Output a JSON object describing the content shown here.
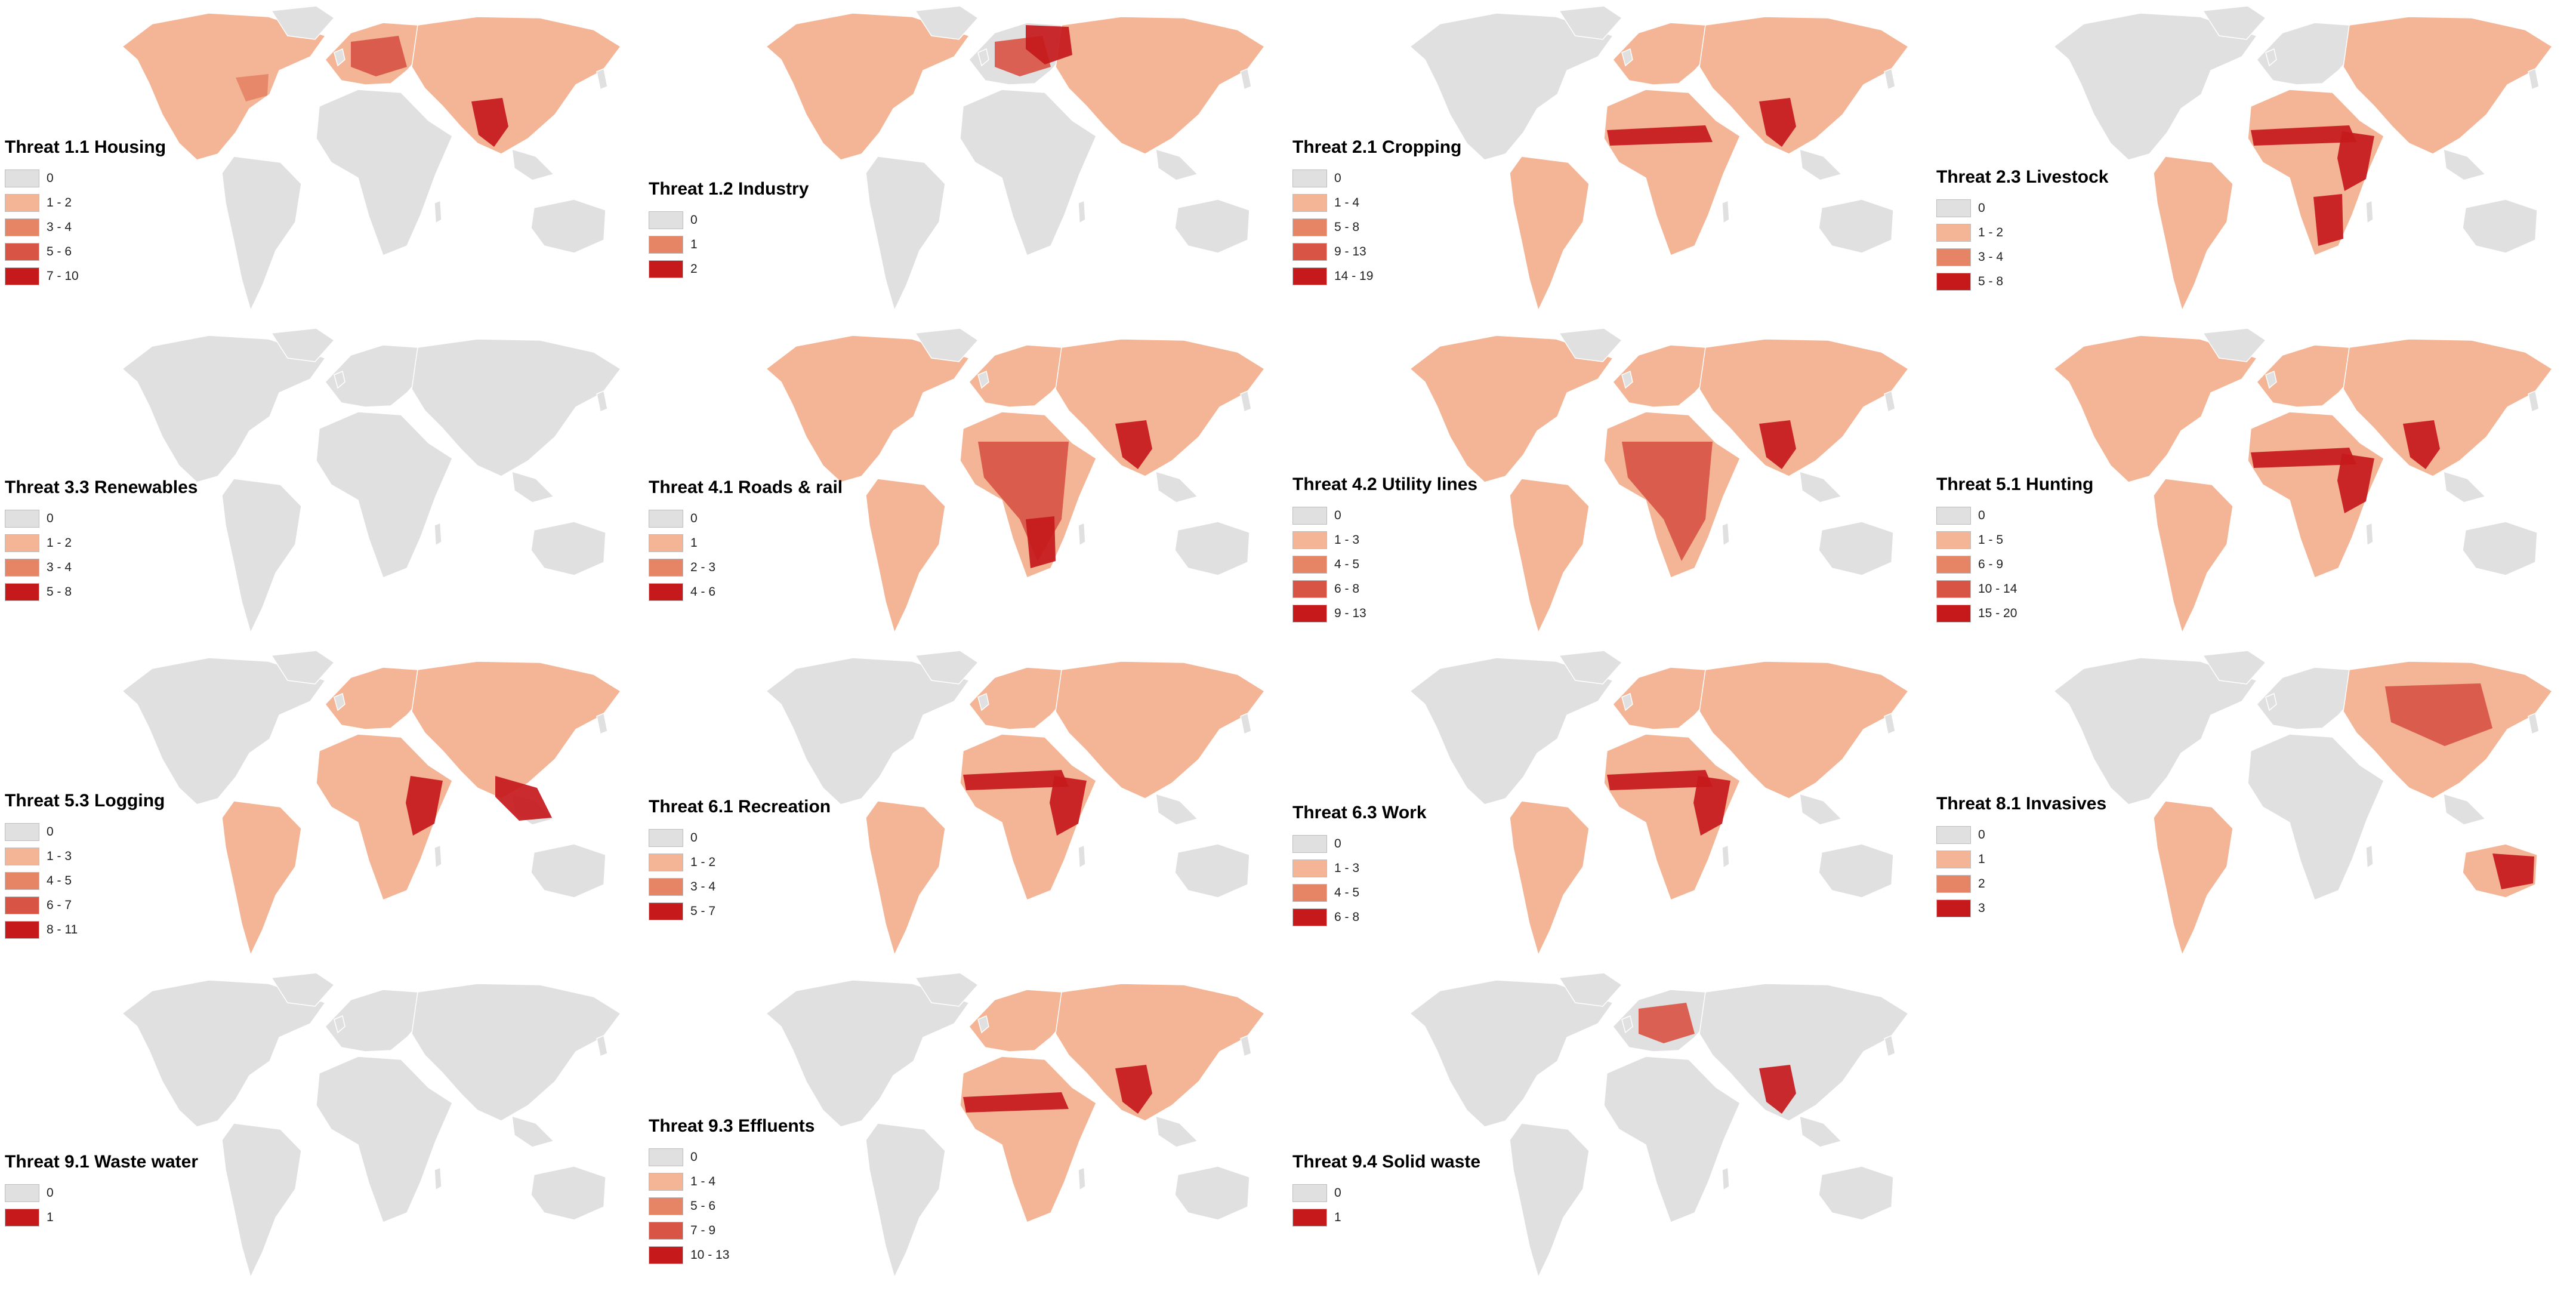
{
  "figure": {
    "colors": {
      "background": "#ffffff",
      "land": "#e0e0e0",
      "scale": [
        "#e0e0e0",
        "#f3b595",
        "#e68466",
        "#d85546",
        "#c5191c"
      ]
    },
    "panels": [
      {
        "id": "1-1",
        "title": "Threat 1.1 Housing",
        "legend": [
          "0",
          "1 - 2",
          "3 - 4",
          "5 - 6",
          "7 - 10"
        ],
        "swatch_levels": [
          0,
          1,
          2,
          3,
          4
        ],
        "hotspots": [
          "s-asia",
          "europe",
          "e-usa"
        ]
      },
      {
        "id": "1-2",
        "title": "Threat 1.2 Industry",
        "legend": [
          "0",
          "1",
          "2"
        ],
        "swatch_levels": [
          0,
          2,
          4
        ],
        "hotspots": [
          "europe",
          "e-europe"
        ]
      },
      {
        "id": "2-1",
        "title": "Threat 2.1 Cropping",
        "legend": [
          "0",
          "1 - 4",
          "5 - 8",
          "9 - 13",
          "14 - 19"
        ],
        "swatch_levels": [
          0,
          1,
          2,
          3,
          4
        ],
        "hotspots": [
          "sahel",
          "s-asia"
        ]
      },
      {
        "id": "2-3",
        "title": "Threat 2.3 Livestock",
        "legend": [
          "0",
          "1 - 2",
          "3 - 4",
          "5 - 8"
        ],
        "swatch_levels": [
          0,
          1,
          2,
          4
        ],
        "hotspots": [
          "sahel",
          "e-africa",
          "s-africa"
        ]
      },
      {
        "id": "3-3",
        "title": "Threat 3.3 Renewables",
        "legend": [
          "0",
          "1 - 2",
          "3 - 4",
          "5 - 8"
        ],
        "swatch_levels": [
          0,
          1,
          2,
          4
        ],
        "hotspots": []
      },
      {
        "id": "4-1",
        "title": "Threat 4.1 Roads & rail",
        "legend": [
          "0",
          "1",
          "2 - 3",
          "4 - 6"
        ],
        "swatch_levels": [
          0,
          1,
          2,
          4
        ],
        "hotspots": [
          "africa",
          "s-africa",
          "s-asia"
        ]
      },
      {
        "id": "4-2",
        "title": "Threat 4.2 Utility lines",
        "legend": [
          "0",
          "1 - 3",
          "4 - 5",
          "6 - 8",
          "9 - 13"
        ],
        "swatch_levels": [
          0,
          1,
          2,
          3,
          4
        ],
        "hotspots": [
          "africa",
          "s-asia"
        ]
      },
      {
        "id": "5-1",
        "title": "Threat 5.1 Hunting",
        "legend": [
          "0",
          "1 - 5",
          "6 - 9",
          "10 - 14",
          "15 - 20"
        ],
        "swatch_levels": [
          0,
          1,
          2,
          3,
          4
        ],
        "hotspots": [
          "sahel",
          "e-africa",
          "s-asia"
        ]
      },
      {
        "id": "5-3",
        "title": "Threat 5.3 Logging",
        "legend": [
          "0",
          "1 - 3",
          "4 - 5",
          "6 - 7",
          "8 - 11"
        ],
        "swatch_levels": [
          0,
          1,
          2,
          3,
          4
        ],
        "hotspots": [
          "e-africa",
          "se-asia"
        ]
      },
      {
        "id": "6-1",
        "title": "Threat 6.1 Recreation",
        "legend": [
          "0",
          "1 - 2",
          "3 - 4",
          "5 - 7"
        ],
        "swatch_levels": [
          0,
          1,
          2,
          4
        ],
        "hotspots": [
          "sahel",
          "e-africa"
        ]
      },
      {
        "id": "6-3",
        "title": "Threat 6.3 Work",
        "legend": [
          "0",
          "1 - 3",
          "4 - 5",
          "6 - 8"
        ],
        "swatch_levels": [
          0,
          1,
          2,
          4
        ],
        "hotspots": [
          "e-africa",
          "sahel"
        ]
      },
      {
        "id": "8-1",
        "title": "Threat 8.1 Invasives",
        "legend": [
          "0",
          "1",
          "2",
          "3"
        ],
        "swatch_levels": [
          0,
          1,
          2,
          4
        ],
        "hotspots": [
          "c-asia",
          "australia"
        ]
      },
      {
        "id": "9-1",
        "title": "Threat 9.1 Waste water",
        "legend": [
          "0",
          "1"
        ],
        "swatch_levels": [
          0,
          4
        ],
        "hotspots": []
      },
      {
        "id": "9-3",
        "title": "Threat 9.3 Effluents",
        "legend": [
          "0",
          "1 - 4",
          "5 - 6",
          "7 - 9",
          "10 - 13"
        ],
        "swatch_levels": [
          0,
          1,
          2,
          3,
          4
        ],
        "hotspots": [
          "sahel",
          "s-asia"
        ]
      },
      {
        "id": "9-4",
        "title": "Threat 9.4 Solid waste",
        "legend": [
          "0",
          "1"
        ],
        "swatch_levels": [
          0,
          4
        ],
        "hotspots": [
          "s-asia",
          "europe"
        ]
      }
    ]
  }
}
